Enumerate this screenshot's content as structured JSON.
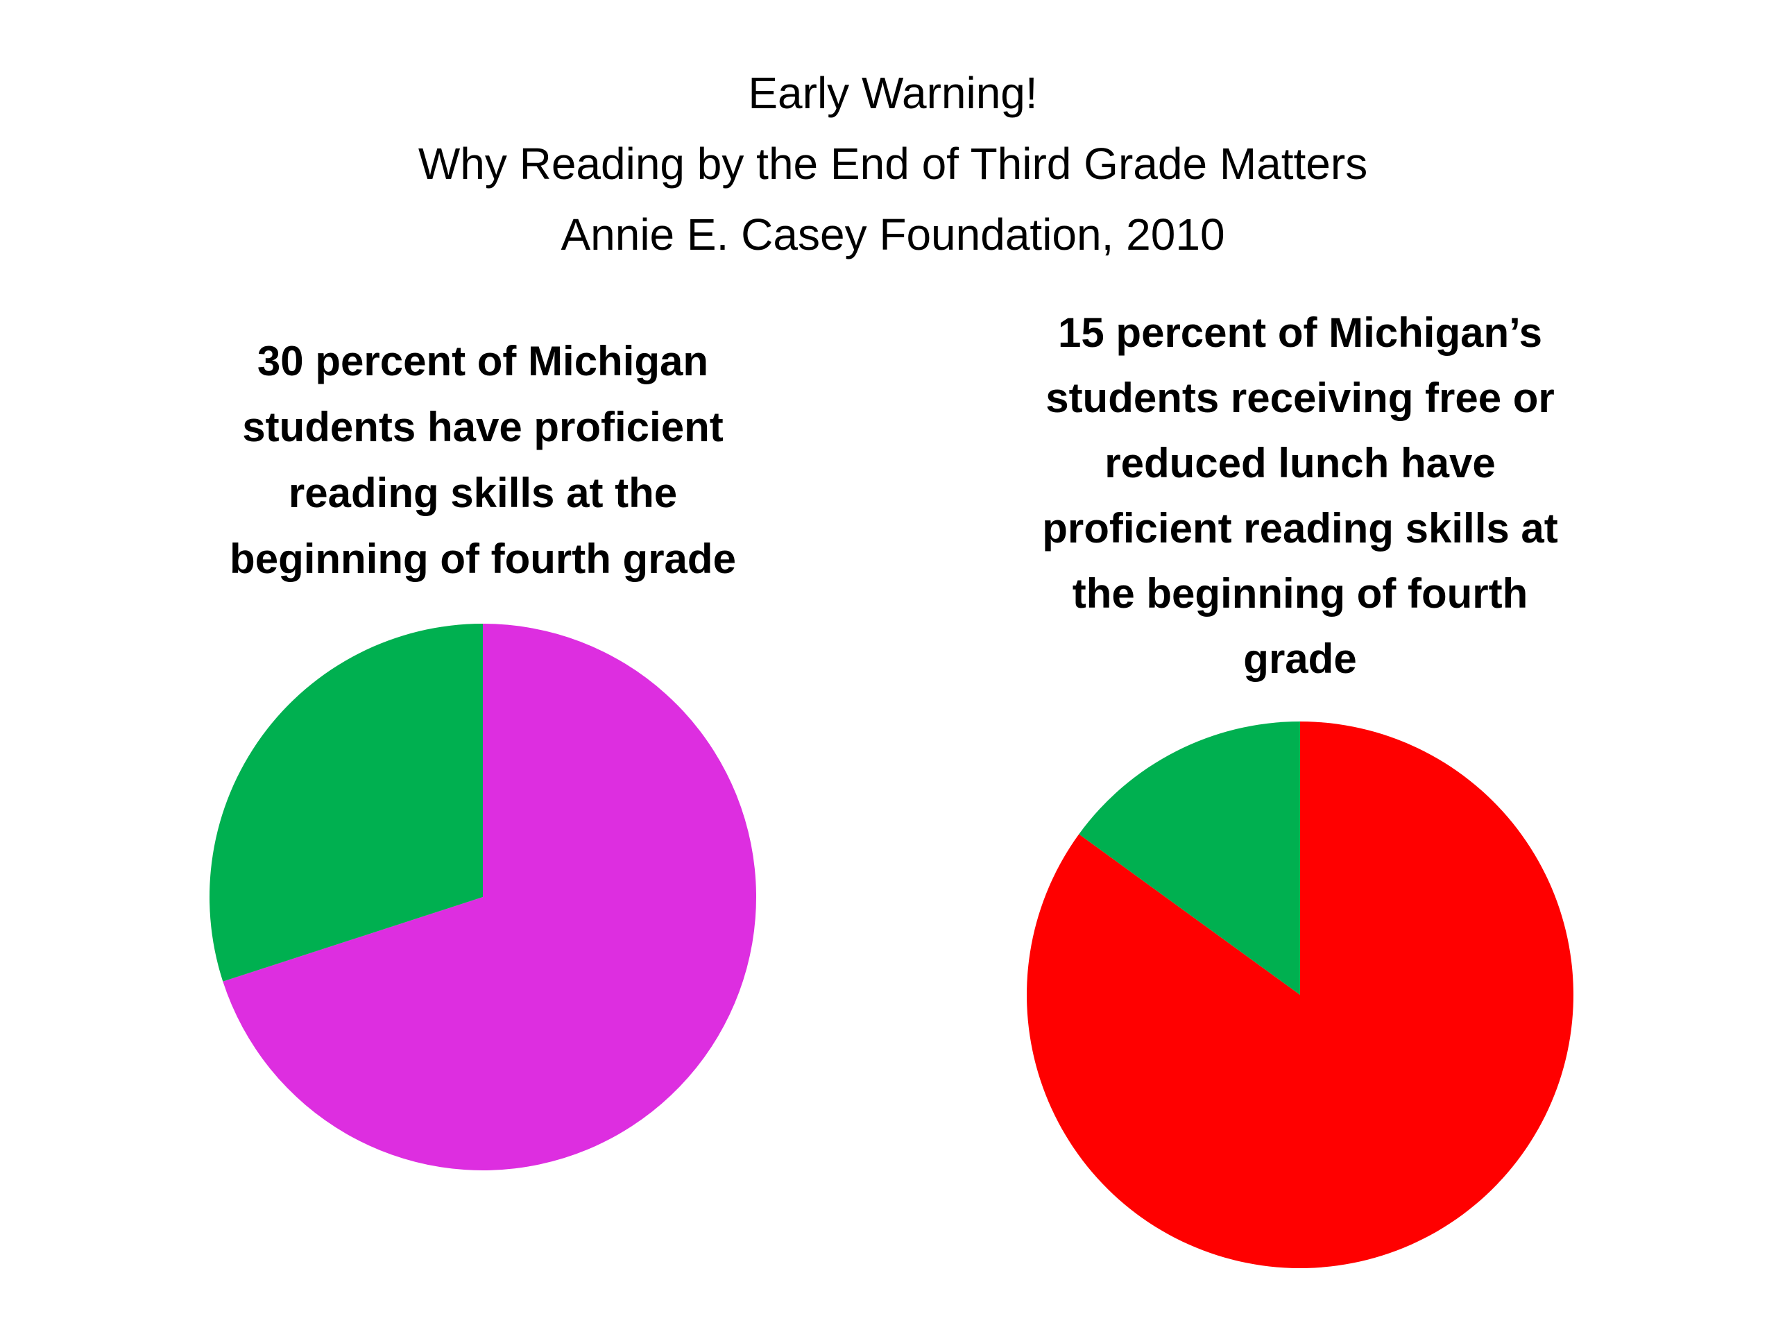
{
  "title_lines": [
    "Early Warning!",
    "Why Reading by the End of Third Grade Matters",
    "Annie E. Casey Foundation, 2010"
  ],
  "chart_data": [
    {
      "type": "pie",
      "title": [
        "30 percent of Michigan",
        "students have proficient",
        "reading skills at the",
        "beginning of fourth grade"
      ],
      "values": [
        70,
        30
      ],
      "colors": [
        "#dd2ee0",
        "#00b050"
      ]
    },
    {
      "type": "pie",
      "title": [
        "15 percent of Michigan’s",
        "students receiving free or",
        "reduced lunch have",
        "proficient reading skills at",
        "the beginning of fourth",
        "grade"
      ],
      "values": [
        85,
        15
      ],
      "colors": [
        "#ff0000",
        "#00b050"
      ]
    }
  ]
}
